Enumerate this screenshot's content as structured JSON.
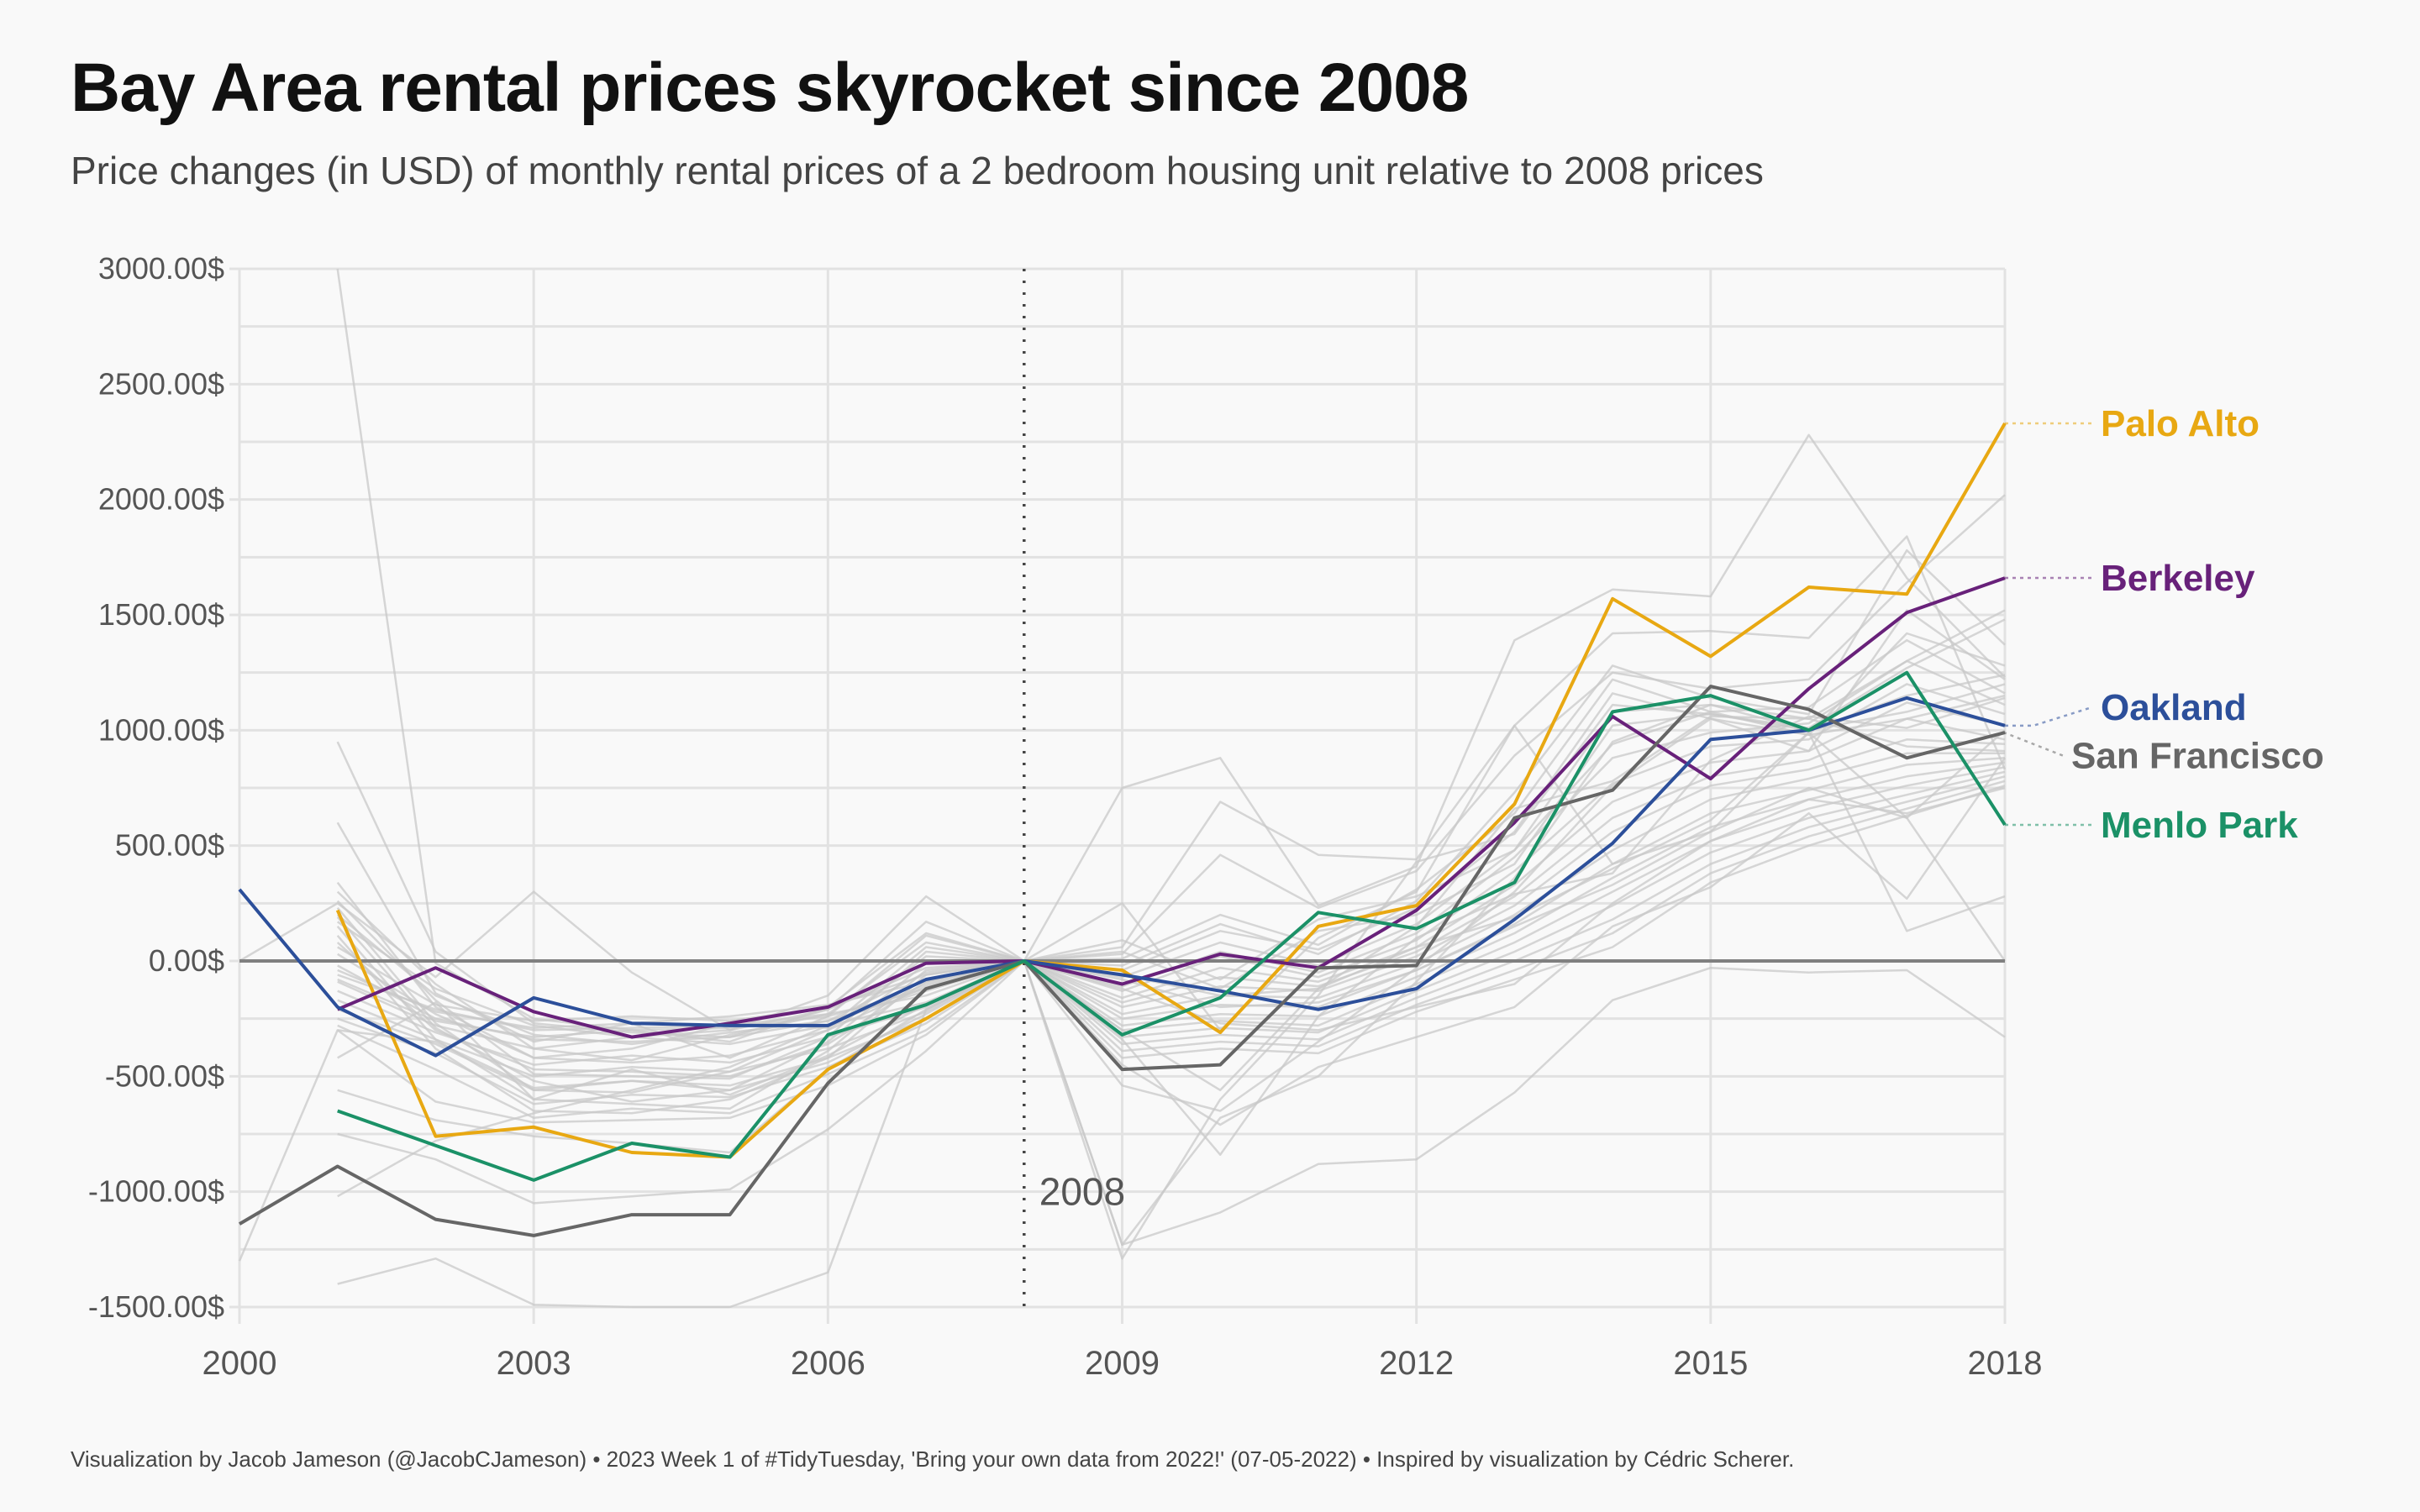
{
  "chart_data": {
    "type": "line",
    "title": "Bay Area rental prices skyrocket since 2008",
    "subtitle": "Price changes (in USD) of monthly rental prices of a 2 bedroom housing unit relative to 2008 prices",
    "caption": "Visualization by Jacob Jameson (@JacobCJameson) • 2023 Week 1 of #TidyTuesday, 'Bring your own data from 2022!' (07-05-2022) • Inspired by visualization by Cédric Scherer.",
    "xlabel": "",
    "ylabel": "",
    "xlim": [
      2000,
      2018
    ],
    "ylim": [
      -1500,
      3000
    ],
    "x_ticks": [
      2000,
      2003,
      2006,
      2009,
      2012,
      2015,
      2018
    ],
    "x_tick_labels": [
      "2000",
      "2003",
      "2006",
      "2009",
      "2012",
      "2015",
      "2018"
    ],
    "y_ticks": [
      3000,
      2500,
      2000,
      1500,
      1000,
      500,
      0,
      -500,
      -1000,
      -1500
    ],
    "y_tick_labels": [
      "3000.00$",
      "2500.00$",
      "2000.00$",
      "1500.00$",
      "1000.00$",
      "500.00$",
      "0.00$",
      "-500.00$",
      "-1000.00$",
      "-1500.00$"
    ],
    "grid": true,
    "reference_line": {
      "x": 2008,
      "label": "2008"
    },
    "x": [
      2000,
      2001,
      2002,
      2003,
      2004,
      2005,
      2006,
      2007,
      2008,
      2009,
      2010,
      2011,
      2012,
      2013,
      2014,
      2015,
      2016,
      2017,
      2018
    ],
    "highlight_series": [
      {
        "name": "Palo Alto",
        "color": "#E8A812",
        "values": [
          null,
          220,
          -760,
          -720,
          -830,
          -850,
          -470,
          -250,
          0,
          -40,
          -310,
          150,
          240,
          680,
          1570,
          1320,
          1620,
          1590,
          2330
        ]
      },
      {
        "name": "Berkeley",
        "color": "#68217A",
        "values": [
          null,
          -210,
          -30,
          -220,
          -330,
          -270,
          -200,
          -10,
          0,
          -100,
          30,
          -30,
          220,
          600,
          1060,
          790,
          1180,
          1510,
          1660
        ]
      },
      {
        "name": "Oakland",
        "color": "#2C4F9A",
        "values": [
          310,
          -200,
          -410,
          -160,
          -270,
          -280,
          -280,
          -80,
          0,
          -60,
          -130,
          -210,
          -120,
          180,
          510,
          960,
          1000,
          1140,
          1020
        ]
      },
      {
        "name": "San Francisco",
        "color": "#666666",
        "values": [
          -1140,
          -890,
          -1120,
          -1190,
          -1100,
          -1100,
          -530,
          -120,
          0,
          -470,
          -450,
          -30,
          -20,
          620,
          740,
          1190,
          1090,
          880,
          990
        ]
      },
      {
        "name": "Menlo Park",
        "color": "#1B9167",
        "values": [
          null,
          -650,
          -800,
          -950,
          -790,
          -850,
          -320,
          -190,
          0,
          -320,
          -160,
          210,
          140,
          340,
          1080,
          1150,
          1000,
          1250,
          590
        ]
      }
    ],
    "background_series": [
      {
        "values": [
          0,
          250,
          -70,
          300,
          -50,
          -300,
          -150,
          280,
          0,
          250,
          -300,
          100,
          300,
          1020,
          420,
          560,
          990,
          620,
          1000
        ]
      },
      {
        "values": [
          -1300,
          -300,
          -350,
          -550,
          -520,
          -560,
          -440,
          -230,
          0,
          -300,
          -560,
          -120,
          150,
          660,
          780,
          1060,
          1050,
          930,
          910
        ]
      },
      {
        "values": [
          null,
          3000,
          -10,
          -250,
          -300,
          -350,
          -200,
          120,
          0,
          750,
          880,
          240,
          410,
          1390,
          1610,
          1580,
          2280,
          1660,
          1230
        ]
      },
      {
        "values": [
          null,
          950,
          40,
          -270,
          -310,
          -330,
          -210,
          170,
          0,
          60,
          690,
          460,
          440,
          1020,
          1420,
          1430,
          1400,
          1840,
          830
        ]
      },
      {
        "values": [
          null,
          600,
          -140,
          -350,
          -270,
          -420,
          -240,
          110,
          0,
          30,
          460,
          230,
          390,
          890,
          1250,
          1180,
          1220,
          1640,
          2020
        ]
      },
      {
        "values": [
          null,
          340,
          -200,
          -420,
          -380,
          -270,
          -290,
          60,
          0,
          -20,
          160,
          30,
          260,
          730,
          1280,
          1140,
          1070,
          1780,
          1370
        ]
      },
      {
        "values": [
          null,
          300,
          -100,
          -380,
          -430,
          -320,
          -230,
          80,
          0,
          10,
          200,
          70,
          310,
          640,
          1220,
          1080,
          980,
          1420,
          1280
        ]
      },
      {
        "values": [
          null,
          260,
          -170,
          -490,
          -500,
          -510,
          -330,
          40,
          0,
          -40,
          130,
          50,
          230,
          560,
          1160,
          1050,
          910,
          1520,
          1220
        ]
      },
      {
        "values": [
          null,
          230,
          -270,
          -560,
          -570,
          -480,
          -300,
          20,
          0,
          -70,
          80,
          -20,
          160,
          480,
          940,
          1080,
          1100,
          1390,
          1160
        ]
      },
      {
        "values": [
          null,
          190,
          -290,
          -520,
          -610,
          -560,
          -350,
          -10,
          0,
          -110,
          40,
          -50,
          120,
          450,
          880,
          990,
          1030,
          1300,
          1110
        ]
      },
      {
        "values": [
          null,
          150,
          -340,
          -600,
          -620,
          -640,
          -390,
          -40,
          0,
          -130,
          20,
          -70,
          90,
          390,
          770,
          930,
          960,
          1200,
          1070
        ]
      },
      {
        "values": [
          null,
          110,
          -380,
          -650,
          -660,
          -600,
          -420,
          -60,
          0,
          -160,
          -30,
          -90,
          60,
          330,
          690,
          860,
          910,
          1120,
          1020
        ]
      },
      {
        "values": [
          null,
          80,
          -300,
          -470,
          -480,
          -500,
          -360,
          -90,
          0,
          -180,
          -70,
          -110,
          40,
          280,
          620,
          800,
          870,
          1050,
          960
        ]
      },
      {
        "values": [
          null,
          30,
          -230,
          -420,
          -440,
          -410,
          -300,
          -110,
          0,
          -200,
          -110,
          -130,
          20,
          240,
          560,
          760,
          830,
          960,
          940
        ]
      },
      {
        "values": [
          null,
          -20,
          -250,
          -340,
          -350,
          -330,
          -260,
          -130,
          0,
          -230,
          -150,
          -160,
          -10,
          200,
          480,
          700,
          790,
          900,
          900
        ]
      },
      {
        "values": [
          null,
          -60,
          -210,
          -300,
          -290,
          -280,
          -230,
          -150,
          0,
          -250,
          -190,
          -200,
          -40,
          160,
          420,
          640,
          740,
          850,
          880
        ]
      },
      {
        "values": [
          null,
          -90,
          -280,
          -380,
          -330,
          -360,
          -280,
          -180,
          0,
          -280,
          -230,
          -240,
          -70,
          120,
          360,
          580,
          700,
          800,
          860
        ]
      },
      {
        "values": [
          null,
          -130,
          -310,
          -450,
          -410,
          -440,
          -330,
          -200,
          0,
          -300,
          -260,
          -280,
          -100,
          80,
          300,
          520,
          660,
          760,
          840
        ]
      },
      {
        "values": [
          null,
          -170,
          -340,
          -500,
          -460,
          -480,
          -380,
          -220,
          0,
          -330,
          -290,
          -310,
          -130,
          40,
          240,
          470,
          620,
          720,
          820
        ]
      },
      {
        "values": [
          null,
          -210,
          -360,
          -560,
          -520,
          -540,
          -420,
          -250,
          0,
          -360,
          -320,
          -340,
          -160,
          0,
          180,
          420,
          580,
          690,
          800
        ]
      },
      {
        "values": [
          null,
          -250,
          -400,
          -620,
          -580,
          -590,
          -460,
          -270,
          0,
          -390,
          -350,
          -370,
          -190,
          -40,
          120,
          380,
          540,
          660,
          780
        ]
      },
      {
        "values": [
          null,
          -280,
          -470,
          -680,
          -640,
          -660,
          -490,
          -300,
          0,
          -420,
          -380,
          -400,
          -220,
          -80,
          60,
          340,
          500,
          630,
          760
        ]
      },
      {
        "values": [
          null,
          -420,
          -180,
          -600,
          -470,
          -580,
          -410,
          -190,
          0,
          -340,
          -840,
          -240,
          100,
          290,
          380,
          870,
          1060,
          1010,
          1140
        ]
      },
      {
        "values": [
          null,
          -560,
          -690,
          -760,
          -790,
          -830,
          -470,
          -210,
          0,
          -1290,
          -600,
          -150,
          430,
          550,
          1110,
          1070,
          1000,
          1150,
          1240
        ]
      },
      {
        "values": [
          null,
          -750,
          -860,
          -1050,
          -1020,
          -990,
          -730,
          -390,
          0,
          -1230,
          -680,
          -500,
          -90,
          360,
          950,
          1110,
          1000,
          1080,
          1200
        ]
      },
      {
        "values": [
          null,
          -1020,
          -780,
          -660,
          -560,
          -460,
          -280,
          -100,
          0,
          -540,
          -650,
          -350,
          -30,
          300,
          760,
          1050,
          980,
          1050,
          1150
        ]
      },
      {
        "values": [
          null,
          -1400,
          -1290,
          -1490,
          -1550,
          -1520,
          -1350,
          -210,
          0,
          -1230,
          -1090,
          -880,
          -860,
          -570,
          -170,
          -30,
          -50,
          -40,
          -330
        ]
      },
      {
        "values": [
          null,
          -300,
          -610,
          -700,
          -690,
          -680,
          -540,
          -320,
          0,
          -450,
          -710,
          -460,
          -330,
          -200,
          150,
          320,
          640,
          270,
          880
        ]
      },
      {
        "values": [
          null,
          -80,
          -260,
          -330,
          -300,
          -290,
          -240,
          -120,
          0,
          -120,
          -270,
          -300,
          -200,
          -100,
          250,
          520,
          700,
          640,
          750
        ]
      },
      {
        "values": [
          null,
          60,
          -190,
          -260,
          -240,
          -260,
          -200,
          -60,
          0,
          -80,
          -200,
          -180,
          -40,
          150,
          330,
          560,
          750,
          620,
          0
        ]
      },
      {
        "values": [
          null,
          -40,
          -220,
          -290,
          -270,
          -240,
          -190,
          -90,
          0,
          -60,
          -150,
          -120,
          60,
          190,
          400,
          610,
          990,
          130,
          280
        ]
      },
      {
        "values": [
          null,
          200,
          -150,
          -320,
          -360,
          -310,
          -260,
          -50,
          0,
          40,
          -120,
          130,
          200,
          420,
          1020,
          1070,
          1010,
          1270,
          1480
        ]
      },
      {
        "values": [
          null,
          170,
          -120,
          -280,
          -330,
          -300,
          -210,
          -30,
          0,
          90,
          -80,
          180,
          280,
          480,
          1080,
          1110,
          1050,
          1300,
          1520
        ]
      }
    ]
  }
}
